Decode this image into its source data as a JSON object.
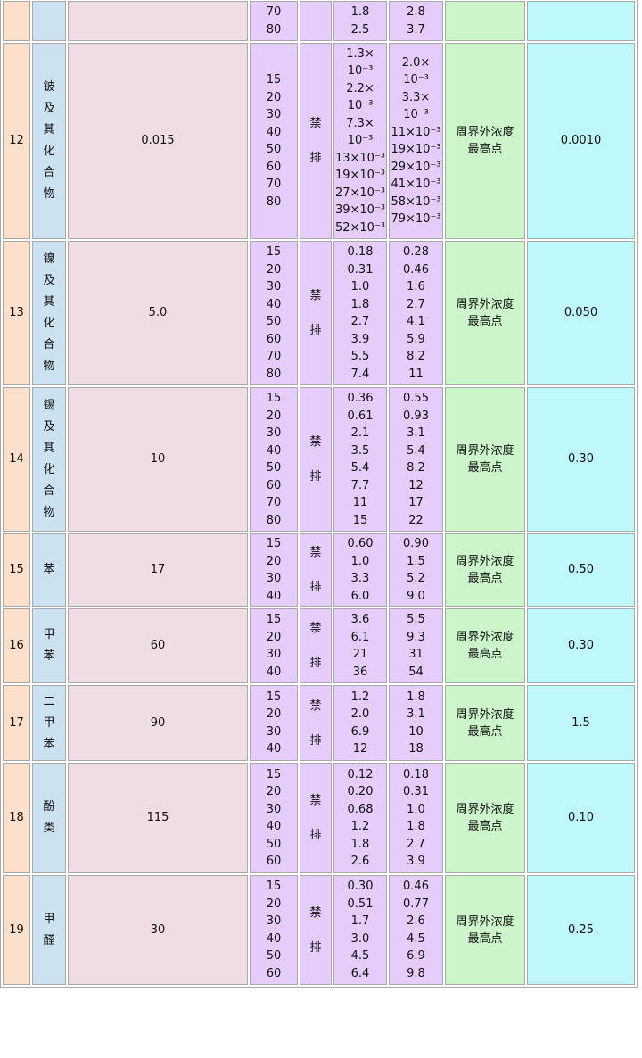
{
  "colors": {
    "no": "#fde0cc",
    "name": "#cde2f0",
    "limit": "#f0dde4",
    "values": "#e6ccfa",
    "monitor": "#ccf5cc",
    "unorg": "#bff8fa"
  },
  "rows": [
    {
      "no": "",
      "name": [],
      "limit": "",
      "heights": [
        "70",
        "80"
      ],
      "rule": [],
      "rate2": [
        "1.8",
        "2.5"
      ],
      "rate3": [
        "2.8",
        "3.7"
      ],
      "monitor": [],
      "conc": "",
      "h": 45
    },
    {
      "no": "12",
      "name": [
        "铍",
        "及",
        "其",
        "化",
        "合",
        "物"
      ],
      "limit": "0.015",
      "heights": [
        "15",
        "20",
        "30",
        "40",
        "50",
        "60",
        "70",
        "80"
      ],
      "rule": [
        "禁",
        "排"
      ],
      "rate2": [
        "1.3×",
        "10⁻³",
        "2.2×",
        "10⁻³",
        "7.3×",
        "10⁻³",
        "13×10⁻³",
        "19×10⁻³",
        "27×10⁻³",
        "39×10⁻³",
        "52×10⁻³"
      ],
      "rate3": [
        "2.0×",
        "10⁻³",
        "3.3×",
        "10⁻³",
        "11×10⁻³",
        "19×10⁻³",
        "29×10⁻³",
        "41×10⁻³",
        "58×10⁻³",
        "79×10⁻³"
      ],
      "monitor": [
        "周界外浓度",
        "最高点"
      ],
      "conc": "0.0010",
      "h": 220
    },
    {
      "no": "13",
      "name": [
        "镍",
        "及",
        "其",
        "化",
        "合",
        "物"
      ],
      "limit": "5.0",
      "heights": [
        "15",
        "20",
        "30",
        "40",
        "50",
        "60",
        "70",
        "80"
      ],
      "rule": [
        "禁",
        "排"
      ],
      "rate2": [
        "0.18",
        "0.31",
        "1.0",
        "1.8",
        "2.7",
        "3.9",
        "5.5",
        "7.4"
      ],
      "rate3": [
        "0.28",
        "0.46",
        "1.6",
        "2.7",
        "4.1",
        "5.9",
        "8.2",
        "11"
      ],
      "monitor": [
        "周界外浓度",
        "最高点"
      ],
      "conc": "0.050",
      "h": 162
    },
    {
      "no": "14",
      "name": [
        "锡",
        "及",
        "其",
        "化",
        "合",
        "物"
      ],
      "limit": "10",
      "heights": [
        "15",
        "20",
        "30",
        "40",
        "50",
        "60",
        "70",
        "80"
      ],
      "rule": [
        "禁",
        "排"
      ],
      "rate2": [
        "0.36",
        "0.61",
        "2.1",
        "3.5",
        "5.4",
        "7.7",
        "11",
        "15"
      ],
      "rate3": [
        "0.55",
        "0.93",
        "3.1",
        "5.4",
        "8.2",
        "12",
        "17",
        "22"
      ],
      "monitor": [
        "周界外浓度",
        "最高点"
      ],
      "conc": "0.30",
      "h": 162
    },
    {
      "no": "15",
      "name": [
        "苯"
      ],
      "limit": "17",
      "heights": [
        "15",
        "20",
        "30",
        "40"
      ],
      "rule": [
        "禁",
        "排"
      ],
      "rate2": [
        "0.60",
        "1.0",
        "3.3",
        "6.0"
      ],
      "rate3": [
        "0.90",
        "1.5",
        "5.2",
        "9.0"
      ],
      "monitor": [
        "周界外浓度",
        "最高点"
      ],
      "conc": "0.50",
      "h": 82
    },
    {
      "no": "16",
      "name": [
        "甲",
        "苯"
      ],
      "limit": "60",
      "heights": [
        "15",
        "20",
        "30",
        "40"
      ],
      "rule": [
        "禁",
        "排"
      ],
      "rate2": [
        "3.6",
        "6.1",
        "21",
        "36"
      ],
      "rate3": [
        "5.5",
        "9.3",
        "31",
        "54"
      ],
      "monitor": [
        "周界外浓度",
        "最高点"
      ],
      "conc": "0.30",
      "h": 84
    },
    {
      "no": "17",
      "name": [
        "二",
        "甲",
        "苯"
      ],
      "limit": "90",
      "heights": [
        "15",
        "20",
        "30",
        "40"
      ],
      "rule": [
        "禁",
        "排"
      ],
      "rate2": [
        "1.2",
        "2.0",
        "6.9",
        "12"
      ],
      "rate3": [
        "1.8",
        "3.1",
        "10",
        "18"
      ],
      "monitor": [
        "周界外浓度",
        "最高点"
      ],
      "conc": "1.5",
      "h": 85
    },
    {
      "no": "18",
      "name": [
        "酚",
        "类"
      ],
      "limit": "115",
      "heights": [
        "15",
        "20",
        "30",
        "40",
        "50",
        "60"
      ],
      "rule": [
        "禁",
        "排"
      ],
      "rate2": [
        "0.12",
        "0.20",
        "0.68",
        "1.2",
        "1.8",
        "2.6"
      ],
      "rate3": [
        "0.18",
        "0.31",
        "1.0",
        "1.8",
        "2.7",
        "3.9"
      ],
      "monitor": [
        "周界外浓度",
        "最高点"
      ],
      "conc": "0.10",
      "h": 124
    },
    {
      "no": "19",
      "name": [
        "甲",
        "醛"
      ],
      "limit": "30",
      "heights": [
        "15",
        "20",
        "30",
        "40",
        "50",
        "60"
      ],
      "rule": [
        "禁",
        "排"
      ],
      "rate2": [
        "0.30",
        "0.51",
        "1.7",
        "3.0",
        "4.5",
        "6.4"
      ],
      "rate3": [
        "0.46",
        "0.77",
        "2.6",
        "4.5",
        "6.9",
        "9.8"
      ],
      "monitor": [
        "周界外浓度",
        "最高点"
      ],
      "conc": "0.25",
      "h": 123
    }
  ]
}
